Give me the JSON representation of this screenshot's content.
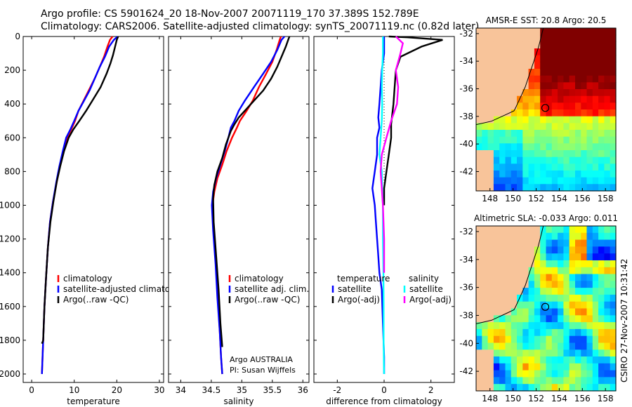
{
  "header": {
    "line1": "Argo profile: CS 5901624_20 18-Nov-2007 20071119_170 37.389S 152.789E",
    "line2": "Climatology: CARS2006. Satellite-adjusted climatology: synTS_20071119.nc (0.82d later)"
  },
  "colors": {
    "climatology": "#ff0000",
    "satellite": "#0000ff",
    "argo": "#000000",
    "temp_satellite": "#0000ff",
    "temp_argo": "#000000",
    "sal_satellite": "#00ffff",
    "sal_argo": "#ff00ff",
    "land": "#f8c49a"
  },
  "chart_data": [
    {
      "type": "line",
      "xlabel": "temperature",
      "xlim": [
        -2,
        31
      ],
      "xticks": [
        "0",
        "10",
        "20",
        "30"
      ],
      "ylim": [
        0,
        2050
      ],
      "yticks": [
        "0",
        "200",
        "400",
        "600",
        "800",
        "1000",
        "1200",
        "1400",
        "1600",
        "1800",
        "2000"
      ],
      "legend": [
        "climatology",
        "satellite-adjusted climatolog",
        "Argo(..raw -QC)"
      ],
      "series": [
        {
          "name": "climatology",
          "x": [
            19.0,
            18.4,
            17.8,
            17.0,
            16.0,
            14.8,
            13.4,
            12.2,
            11.0,
            10.2,
            9.3,
            8.3,
            7.4,
            6.6,
            5.9,
            5.0,
            4.3,
            3.8,
            3.4,
            3.0,
            2.7,
            2.4
          ],
          "y": [
            0,
            20,
            60,
            120,
            180,
            250,
            320,
            380,
            440,
            500,
            550,
            600,
            680,
            770,
            860,
            980,
            1100,
            1250,
            1420,
            1600,
            1800,
            2000
          ]
        },
        {
          "name": "satellite-adjusted climatolog",
          "x": [
            20.2,
            19.3,
            18.2,
            17.2,
            16.0,
            14.8,
            13.6,
            12.3,
            11.0,
            10.0,
            9.1,
            8.1,
            7.3,
            6.5,
            5.8,
            5.0,
            4.3,
            3.8,
            3.4,
            3.0,
            2.7,
            2.4
          ],
          "y": [
            0,
            20,
            60,
            120,
            180,
            250,
            320,
            380,
            440,
            500,
            550,
            600,
            680,
            770,
            860,
            980,
            1100,
            1250,
            1420,
            1600,
            1800,
            2000
          ]
        },
        {
          "name": "Argo(..raw -QC)",
          "x": [
            20.3,
            20.0,
            19.6,
            19.1,
            18.5,
            17.6,
            16.2,
            14.5,
            12.8,
            11.2,
            9.8,
            8.7,
            7.6,
            6.7,
            5.9,
            5.1,
            4.4,
            3.8,
            3.4,
            3.0,
            2.7,
            2.4
          ],
          "y": [
            0,
            20,
            60,
            110,
            160,
            220,
            300,
            370,
            440,
            500,
            550,
            600,
            680,
            770,
            860,
            980,
            1100,
            1250,
            1420,
            1600,
            1800,
            1820
          ]
        }
      ]
    },
    {
      "type": "line",
      "xlabel": "salinity",
      "xlim": [
        33.8,
        36.1
      ],
      "xticks": [
        "34",
        "34.5",
        "35",
        "35.5",
        "36"
      ],
      "ylim": [
        0,
        2050
      ],
      "legend": [
        "climatology",
        "satellite adj. clim.",
        "Argo(..raw -QC)"
      ],
      "annotation": [
        "Argo AUSTRALIA",
        "PI: Susan Wijffels"
      ],
      "series": [
        {
          "name": "climatology",
          "x": [
            35.64,
            35.62,
            35.57,
            35.5,
            35.4,
            35.28,
            35.18,
            35.08,
            34.97,
            34.92,
            34.84,
            34.75,
            34.68,
            34.6,
            34.55,
            34.52,
            34.54,
            34.58,
            34.61,
            34.64,
            34.66,
            34.68
          ],
          "y": [
            0,
            20,
            80,
            150,
            220,
            300,
            380,
            440,
            500,
            540,
            600,
            680,
            760,
            840,
            920,
            1000,
            1150,
            1350,
            1550,
            1750,
            1900,
            2000
          ]
        },
        {
          "name": "satellite adj. clim.",
          "x": [
            35.7,
            35.65,
            35.58,
            35.48,
            35.35,
            35.2,
            35.05,
            34.95,
            34.88,
            34.82,
            34.78,
            34.72,
            34.65,
            34.58,
            34.53,
            34.51,
            34.53,
            34.57,
            34.6,
            34.64,
            34.66,
            34.68
          ],
          "y": [
            0,
            20,
            80,
            150,
            220,
            300,
            380,
            440,
            500,
            540,
            600,
            680,
            760,
            840,
            920,
            1000,
            1150,
            1350,
            1550,
            1750,
            1900,
            2000
          ]
        },
        {
          "name": "Argo(..raw -QC)",
          "x": [
            35.78,
            35.76,
            35.72,
            35.65,
            35.58,
            35.48,
            35.35,
            35.2,
            35.05,
            34.95,
            34.88,
            34.82,
            34.74,
            34.68,
            34.6,
            34.55,
            34.53,
            34.54,
            34.58,
            34.62,
            34.65,
            34.68
          ],
          "y": [
            0,
            20,
            60,
            120,
            180,
            250,
            320,
            380,
            440,
            480,
            520,
            560,
            640,
            720,
            800,
            880,
            960,
            1100,
            1300,
            1500,
            1700,
            1840
          ]
        }
      ]
    },
    {
      "type": "line",
      "xlabel": "difference from climatology",
      "xlim": [
        -3,
        3
      ],
      "xticks": [
        "-2",
        "0",
        "2"
      ],
      "ylim": [
        0,
        2050
      ],
      "legend": [
        "temperature",
        "satellite",
        "Argo(-adj)",
        "salinity",
        "satellite",
        "Argo(-adj)"
      ],
      "series": [
        {
          "name": "satellite",
          "group": "temperature",
          "x": [
            0.0,
            0.0,
            -0.1,
            -0.15,
            -0.2,
            -0.25,
            -0.2,
            -0.3,
            -0.3,
            -0.4,
            -0.5,
            -0.4,
            -0.35,
            -0.3,
            -0.25,
            -0.2,
            -0.1,
            -0.05,
            0.0,
            0.0
          ],
          "y": [
            0,
            100,
            200,
            300,
            400,
            480,
            540,
            600,
            700,
            800,
            900,
            1000,
            1100,
            1200,
            1300,
            1400,
            1500,
            1700,
            1900,
            2000
          ]
        },
        {
          "name": "Argo(-adj)",
          "group": "temperature",
          "x": [
            0.2,
            1.0,
            2.5,
            1.6,
            0.7,
            0.5,
            0.45,
            0.4,
            0.3,
            0.3,
            0.2,
            0.1,
            0.0,
            0.0
          ],
          "y": [
            0,
            5,
            20,
            60,
            120,
            200,
            300,
            400,
            520,
            600,
            700,
            800,
            900,
            1000
          ]
        },
        {
          "name": "satellite",
          "group": "salinity",
          "x": [
            -0.05,
            -0.05,
            -0.08,
            -0.1,
            -0.08,
            -0.1,
            -0.15,
            -0.2,
            -0.1,
            -0.08,
            -0.05,
            -0.05,
            -0.03,
            -0.02,
            -0.02,
            -0.01,
            0.0
          ],
          "y": [
            0,
            100,
            200,
            300,
            400,
            500,
            600,
            700,
            800,
            900,
            1000,
            1200,
            1400,
            1600,
            1800,
            1950,
            2000
          ]
        },
        {
          "name": "Argo(-adj)",
          "group": "salinity",
          "x": [
            0.5,
            0.8,
            0.7,
            0.5,
            0.6,
            0.55,
            0.3,
            0.1,
            -0.1,
            -0.15,
            -0.1,
            -0.05,
            0.0,
            0.0
          ],
          "y": [
            0,
            40,
            100,
            200,
            300,
            400,
            500,
            600,
            700,
            800,
            900,
            1000,
            1200,
            1400
          ]
        }
      ]
    },
    {
      "type": "heatmap",
      "title": "AMSR-E SST: 20.8 Argo: 20.5",
      "xticks": [
        "148",
        "150",
        "152",
        "154",
        "156",
        "158"
      ],
      "yticks": [
        "-32",
        "-34",
        "-36",
        "-38",
        "-40",
        "-42"
      ],
      "xlim": [
        146.8,
        158.9
      ],
      "ylim": [
        -43.4,
        -31.6
      ],
      "argo_position": {
        "lon": 152.789,
        "lat": -37.389
      }
    },
    {
      "type": "heatmap",
      "title": "Altimetric SLA: -0.033 Argo: 0.011",
      "xticks": [
        "148",
        "150",
        "152",
        "154",
        "156",
        "158"
      ],
      "yticks": [
        "-32",
        "-34",
        "-36",
        "-38",
        "-40",
        "-42"
      ],
      "xlim": [
        146.8,
        158.9
      ],
      "ylim": [
        -43.4,
        -31.6
      ],
      "argo_position": {
        "lon": 152.789,
        "lat": -37.389
      }
    }
  ],
  "side_label": "CSIRO 27-Nov-2007 10:31:42"
}
